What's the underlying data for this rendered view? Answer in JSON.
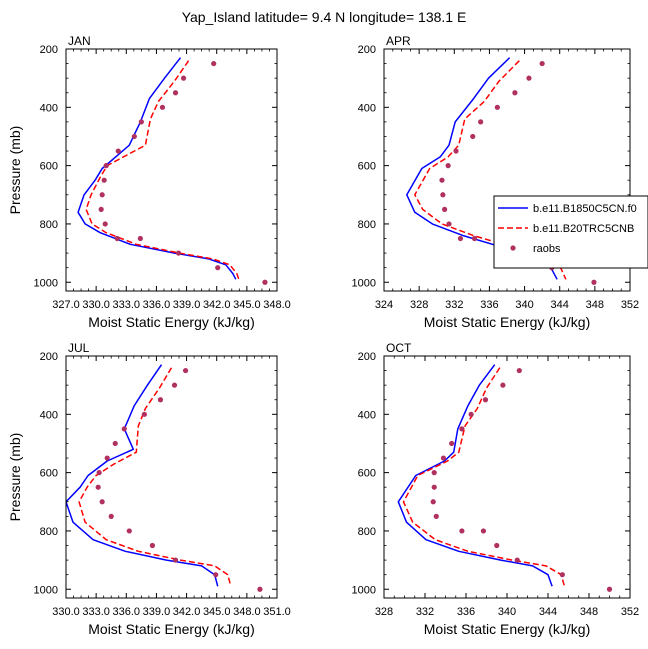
{
  "figure": {
    "title": "Yap_Island  latitude= 9.4 N longitude= 138.1 E"
  },
  "legend": {
    "entries": [
      {
        "label": "b.e11.B1850C5CN.f0",
        "color": "#0000ff",
        "style": "solid"
      },
      {
        "label": "b.e11.B20TRC5CNB",
        "color": "#ff0000",
        "style": "dashed"
      },
      {
        "label": "raobs",
        "color": "#b03060",
        "style": "dot"
      }
    ]
  },
  "chart_data": [
    {
      "type": "line",
      "panel_label": "JAN",
      "xlabel": "Moist Static Energy (kJ/kg)",
      "ylabel": "Pressure (mb)",
      "xlim": [
        327,
        348
      ],
      "ylim": [
        200,
        1030
      ],
      "y_reversed": true,
      "xticks": [
        "327.0",
        "330.0",
        "333.0",
        "336.0",
        "339.0",
        "342.0",
        "345.0",
        "348.0"
      ],
      "yticks": [
        "200",
        "400",
        "600",
        "800",
        "1000"
      ],
      "series": [
        {
          "name": "b.e11.B1850C5CN.f0",
          "x": [
            338.4,
            336.8,
            335.3,
            334.4,
            333.3,
            330.6,
            329.9,
            328.8,
            328.2,
            328.9,
            330.4,
            333.4,
            337.8,
            341.2,
            342.9,
            343.6,
            343.9
          ],
          "y": [
            230,
            300,
            370,
            450,
            530,
            610,
            650,
            700,
            760,
            800,
            830,
            870,
            900,
            920,
            940,
            970,
            990
          ]
        },
        {
          "name": "b.e11.B20TRC5CNB",
          "x": [
            339.2,
            337.8,
            336.2,
            335.4,
            334.9,
            331.1,
            330.4,
            329.5,
            329.0,
            329.6,
            331.0,
            334.0,
            338.3,
            341.6,
            343.3,
            344.0,
            344.2
          ],
          "y": [
            240,
            310,
            380,
            440,
            530,
            600,
            640,
            700,
            750,
            800,
            830,
            870,
            900,
            920,
            940,
            970,
            990
          ]
        },
        {
          "name": "raobs",
          "x": [
            341.7,
            338.7,
            337.9,
            336.6,
            334.5,
            333.8,
            332.2,
            331.0,
            330.8,
            330.6,
            330.5,
            330.9,
            332.1,
            334.4,
            338.2,
            342.1,
            346.8
          ],
          "y": [
            250,
            300,
            350,
            400,
            450,
            500,
            550,
            600,
            650,
            700,
            750,
            800,
            850,
            850,
            900,
            950,
            1000
          ]
        }
      ]
    },
    {
      "type": "line",
      "panel_label": "APR",
      "xlabel": "Moist Static Energy (kJ/kg)",
      "ylabel": "",
      "xlim": [
        324,
        352
      ],
      "ylim": [
        200,
        1030
      ],
      "y_reversed": true,
      "xticks": [
        "324",
        "328",
        "332",
        "336",
        "340",
        "344",
        "348",
        "352"
      ],
      "yticks": [
        "200",
        "400",
        "600",
        "800",
        "1000"
      ],
      "series": [
        {
          "name": "b.e11.B1850C5CN.f0",
          "x": [
            338.3,
            335.9,
            334.2,
            332.1,
            331.4,
            330.4,
            328.3,
            326.6,
            327.5,
            329.5,
            333.0,
            337.5,
            341.5,
            343.0,
            343.7
          ],
          "y": [
            230,
            300,
            370,
            450,
            530,
            570,
            610,
            700,
            760,
            800,
            840,
            880,
            910,
            950,
            990
          ]
        },
        {
          "name": "b.e11.B20TRC5CNB",
          "x": [
            339.4,
            337.1,
            335.4,
            333.2,
            332.5,
            331.3,
            329.2,
            327.5,
            328.4,
            330.6,
            334.2,
            338.7,
            342.5,
            344.1,
            344.7
          ],
          "y": [
            240,
            310,
            380,
            440,
            530,
            570,
            610,
            700,
            750,
            800,
            840,
            880,
            910,
            950,
            990
          ]
        },
        {
          "name": "raobs",
          "x": [
            342.0,
            340.5,
            338.9,
            336.9,
            335.0,
            334.1,
            332.2,
            331.3,
            330.6,
            330.7,
            330.9,
            331.4,
            332.7,
            334.3,
            338.7,
            343.1,
            347.9
          ],
          "y": [
            250,
            300,
            350,
            400,
            450,
            500,
            550,
            600,
            650,
            700,
            750,
            800,
            850,
            850,
            900,
            950,
            1000
          ]
        }
      ]
    },
    {
      "type": "line",
      "panel_label": "JUL",
      "xlabel": "Moist Static Energy (kJ/kg)",
      "ylabel": "Pressure (mb)",
      "xlim": [
        330,
        351
      ],
      "ylim": [
        200,
        1030
      ],
      "y_reversed": true,
      "xticks": [
        "330.0",
        "333.0",
        "336.0",
        "339.0",
        "342.0",
        "345.0",
        "348.0",
        "351.0"
      ],
      "yticks": [
        "200",
        "400",
        "600",
        "800",
        "1000"
      ],
      "series": [
        {
          "name": "b.e11.B1850C5CN.f0",
          "x": [
            339.5,
            338.1,
            336.8,
            335.8,
            336.7,
            334.1,
            332.2,
            331.4,
            330.0,
            330.7,
            332.7,
            335.9,
            340.0,
            343.5,
            344.8,
            345.1
          ],
          "y": [
            230,
            300,
            370,
            450,
            520,
            560,
            610,
            650,
            700,
            770,
            830,
            870,
            900,
            920,
            950,
            990
          ]
        },
        {
          "name": "b.e11.B20TRC5CNB",
          "x": [
            340.5,
            339.3,
            337.9,
            337.2,
            337.0,
            334.8,
            333.0,
            332.1,
            331.3,
            331.9,
            334.0,
            337.2,
            341.4,
            344.8,
            346.1,
            346.4
          ],
          "y": [
            240,
            310,
            380,
            440,
            530,
            570,
            610,
            650,
            700,
            770,
            830,
            870,
            900,
            920,
            950,
            990
          ]
        },
        {
          "name": "raobs",
          "x": [
            341.9,
            340.8,
            339.4,
            337.8,
            335.8,
            334.9,
            334.1,
            333.3,
            333.2,
            333.6,
            334.5,
            336.3,
            338.6,
            340.9,
            344.9,
            349.3
          ],
          "y": [
            250,
            300,
            350,
            400,
            450,
            500,
            550,
            600,
            650,
            700,
            750,
            800,
            850,
            900,
            950,
            1000
          ]
        }
      ]
    },
    {
      "type": "line",
      "panel_label": "OCT",
      "xlabel": "Moist Static Energy (kJ/kg)",
      "ylabel": "",
      "xlim": [
        328,
        352
      ],
      "ylim": [
        200,
        1030
      ],
      "y_reversed": true,
      "xticks": [
        "328",
        "332",
        "336",
        "340",
        "344",
        "348",
        "352"
      ],
      "yticks": [
        "200",
        "400",
        "600",
        "800",
        "1000"
      ],
      "series": [
        {
          "name": "b.e11.B1850C5CN.f0",
          "x": [
            338.8,
            337.3,
            336.2,
            335.2,
            334.8,
            333.9,
            331.1,
            329.4,
            330.2,
            332.1,
            335.3,
            339.4,
            342.5,
            344.0,
            344.4
          ],
          "y": [
            230,
            300,
            370,
            450,
            530,
            560,
            610,
            700,
            770,
            830,
            870,
            900,
            920,
            950,
            990
          ]
        },
        {
          "name": "b.e11.B20TRC5CNB",
          "x": [
            339.3,
            338.0,
            337.1,
            335.9,
            335.3,
            334.2,
            331.3,
            329.9,
            330.8,
            333.0,
            336.2,
            340.5,
            343.8,
            345.3,
            345.6
          ],
          "y": [
            240,
            310,
            380,
            440,
            530,
            560,
            610,
            700,
            770,
            830,
            870,
            900,
            920,
            950,
            990
          ]
        },
        {
          "name": "raobs",
          "x": [
            341.2,
            339.6,
            337.9,
            336.5,
            335.6,
            334.6,
            333.8,
            332.9,
            332.9,
            332.8,
            333.1,
            335.6,
            337.7,
            339.0,
            341.0,
            345.4,
            350.0
          ],
          "y": [
            250,
            300,
            350,
            400,
            450,
            500,
            550,
            600,
            650,
            700,
            750,
            800,
            800,
            850,
            900,
            950,
            1000
          ]
        }
      ]
    }
  ]
}
